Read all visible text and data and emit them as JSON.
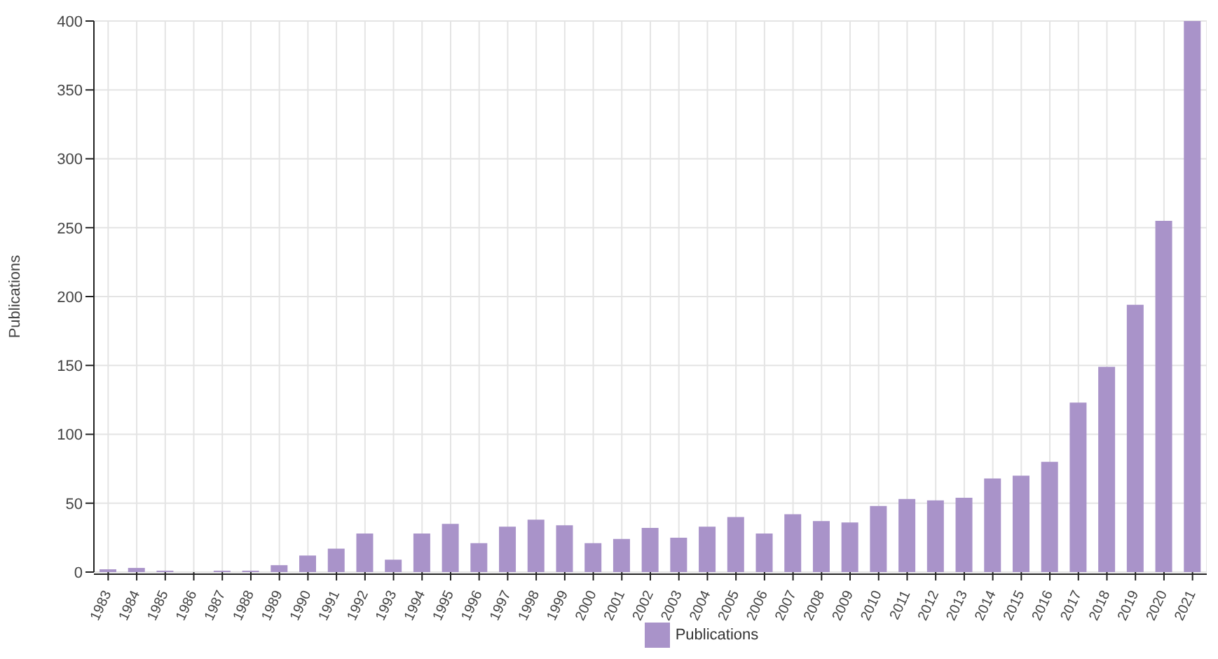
{
  "chart_data": {
    "type": "bar",
    "ylabel": "Publications",
    "categories": [
      "1983",
      "1984",
      "1985",
      "1986",
      "1987",
      "1988",
      "1989",
      "1990",
      "1991",
      "1992",
      "1993",
      "1994",
      "1995",
      "1996",
      "1997",
      "1998",
      "1999",
      "2000",
      "2001",
      "2002",
      "2003",
      "2004",
      "2005",
      "2006",
      "2007",
      "2008",
      "2009",
      "2010",
      "2011",
      "2012",
      "2013",
      "2014",
      "2015",
      "2016",
      "2017",
      "2018",
      "2019",
      "2020",
      "2021"
    ],
    "series": [
      {
        "name": "Publications",
        "color": "#a993c9",
        "values": [
          2,
          3,
          1,
          0,
          1,
          1,
          5,
          12,
          17,
          28,
          9,
          28,
          35,
          21,
          33,
          38,
          34,
          21,
          24,
          32,
          25,
          33,
          40,
          28,
          42,
          37,
          36,
          48,
          53,
          52,
          54,
          68,
          70,
          80,
          123,
          149,
          194,
          255,
          400
        ]
      }
    ],
    "ylim": [
      0,
      400
    ],
    "yticks": [
      0,
      50,
      100,
      150,
      200,
      250,
      300,
      350,
      400
    ],
    "grid": true,
    "legend": "bottom"
  }
}
